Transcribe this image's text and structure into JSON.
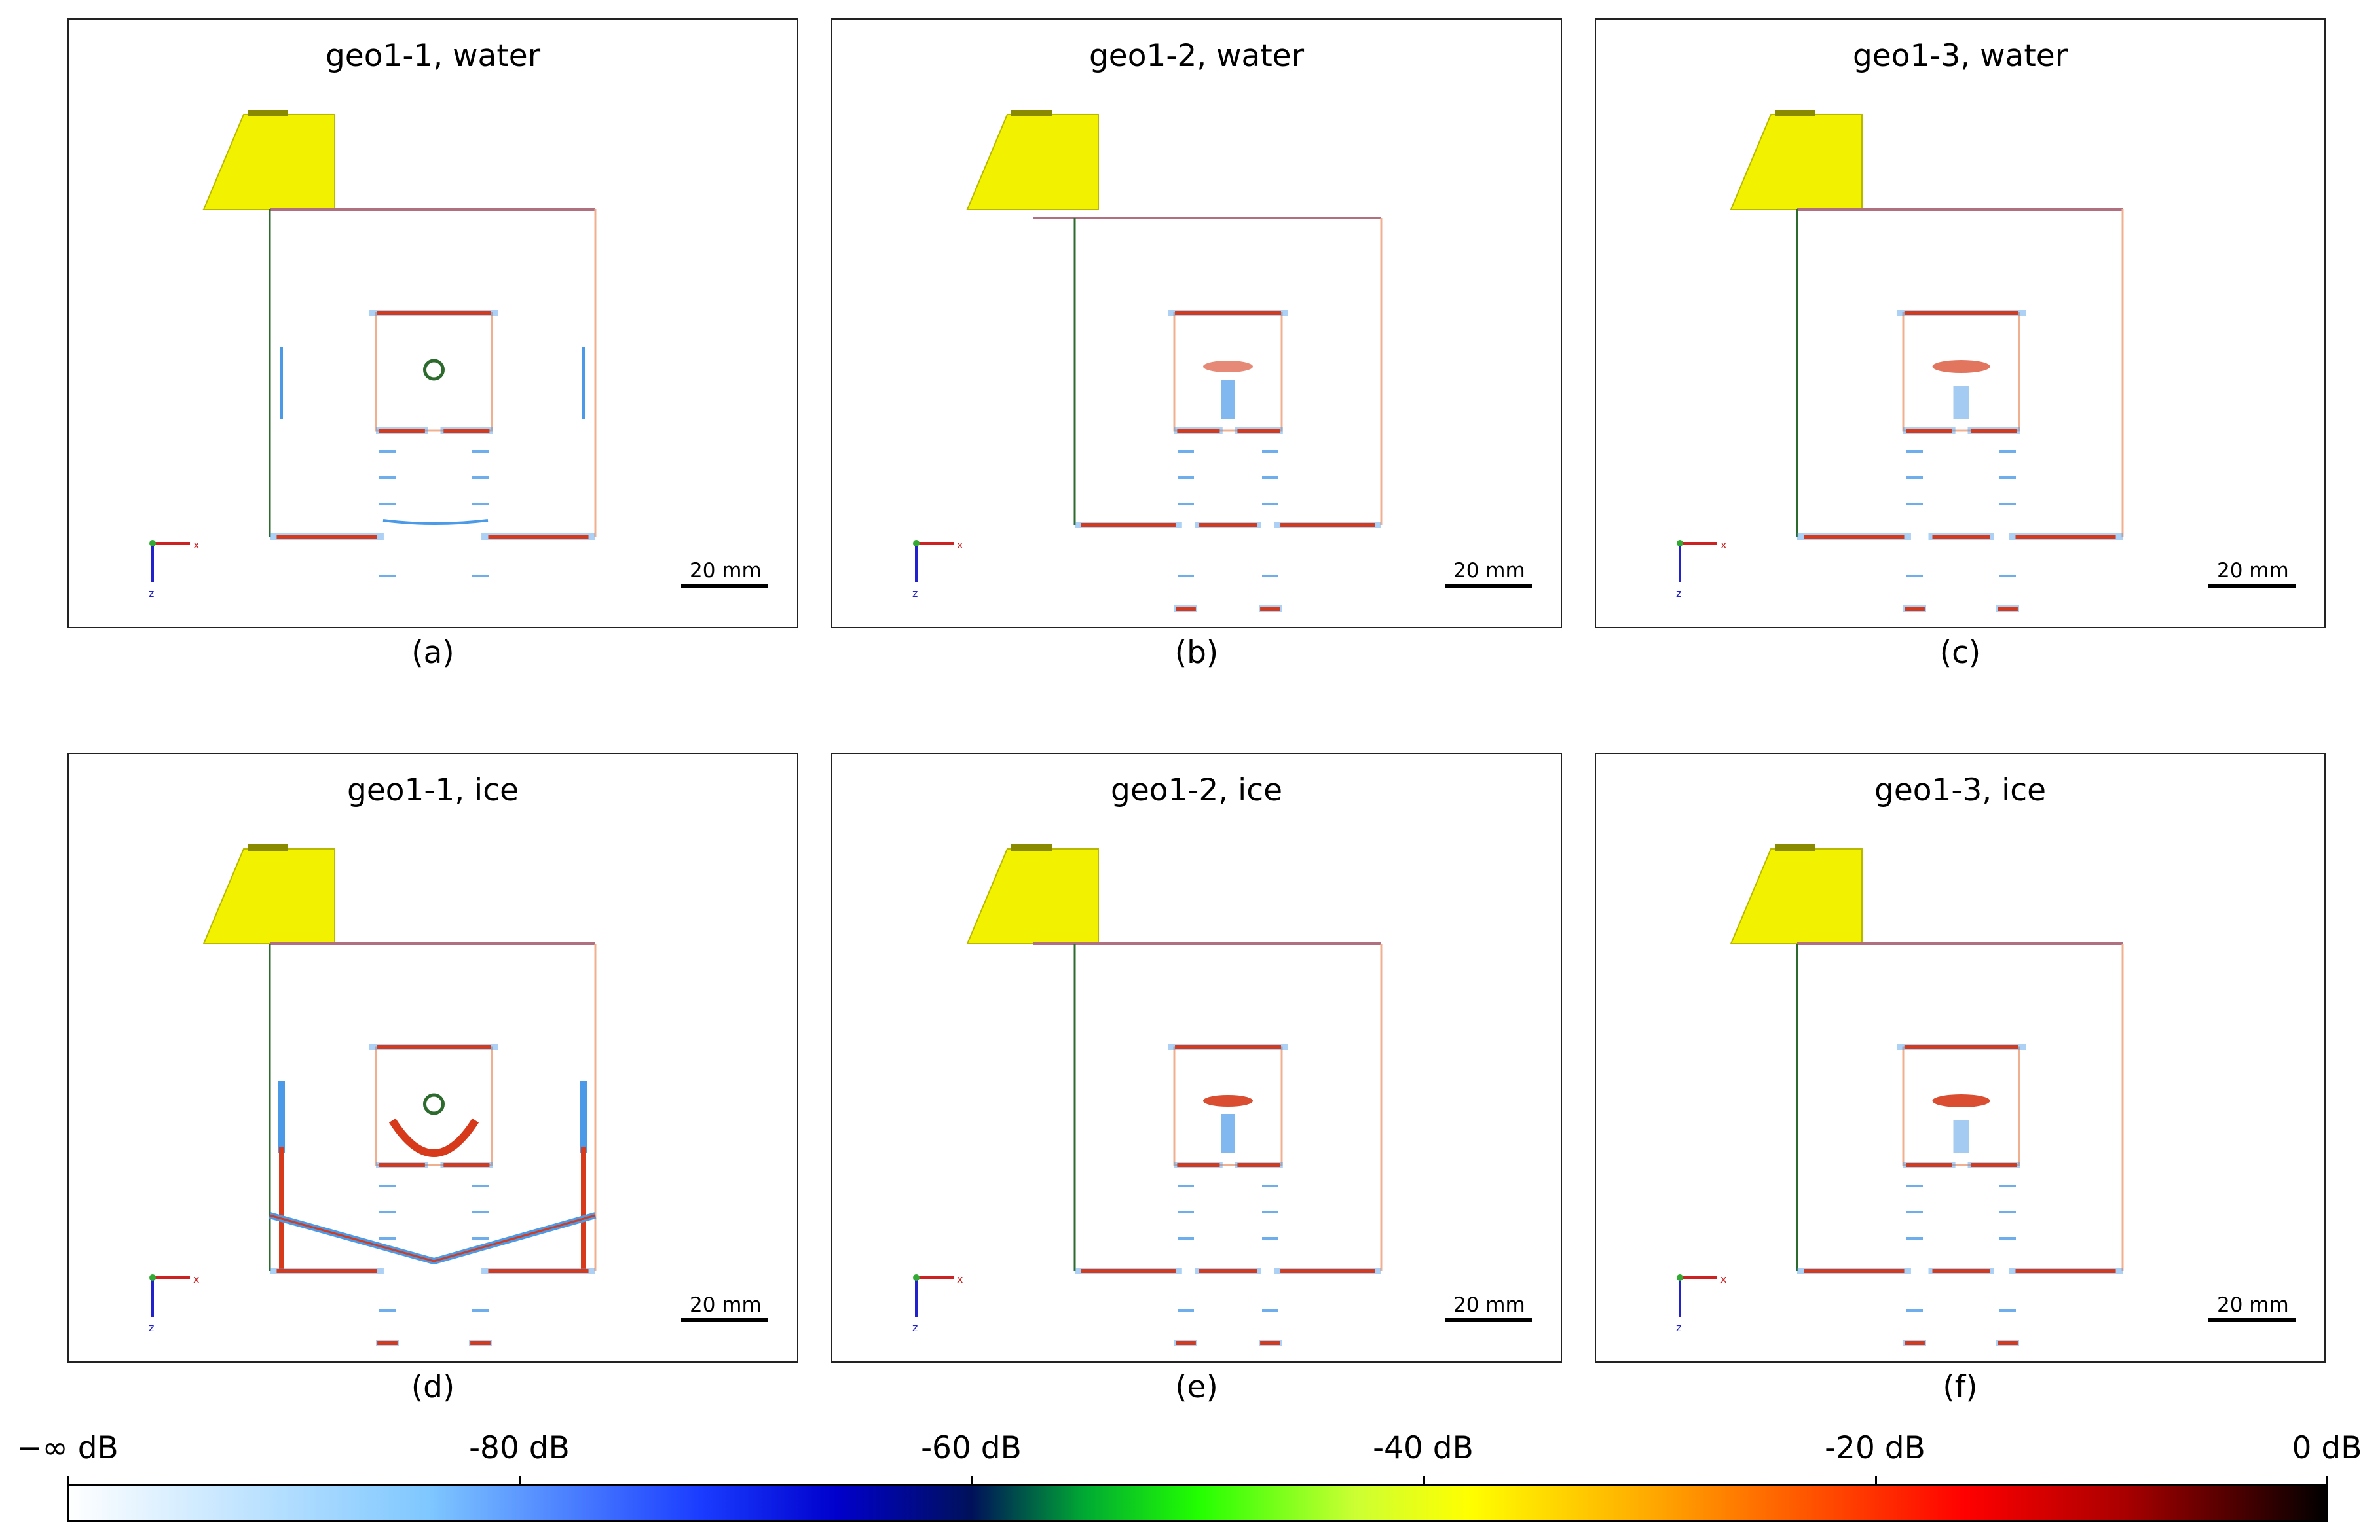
{
  "panels": [
    {
      "title": "geo1-1, water",
      "caption": "(a)",
      "variant": "g1",
      "medium": "water"
    },
    {
      "title": "geo1-2, water",
      "caption": "(b)",
      "variant": "g2",
      "medium": "water"
    },
    {
      "title": "geo1-3, water",
      "caption": "(c)",
      "variant": "g3",
      "medium": "water"
    },
    {
      "title": "geo1-1, ice",
      "caption": "(d)",
      "variant": "g1",
      "medium": "ice"
    },
    {
      "title": "geo1-2, ice",
      "caption": "(e)",
      "variant": "g2",
      "medium": "ice"
    },
    {
      "title": "geo1-3, ice",
      "caption": "(f)",
      "variant": "g3",
      "medium": "ice"
    }
  ],
  "scale_bar": {
    "label": "20 mm"
  },
  "axes_triad": {
    "x_label": "x",
    "z_label": "z"
  },
  "colorbar": {
    "labels": [
      "−∞ dB",
      "-80 dB",
      "-60 dB",
      "-40 dB",
      "-20 dB",
      "0 dB"
    ]
  },
  "colors": {
    "transducer": "#f2f200",
    "top_boundary": "#b07080",
    "left_boundary": "#2d6a2d",
    "right_boundary": "#f0b090",
    "strong_echo": "#d63a1a",
    "weak_echo": "#4a9ae8"
  }
}
